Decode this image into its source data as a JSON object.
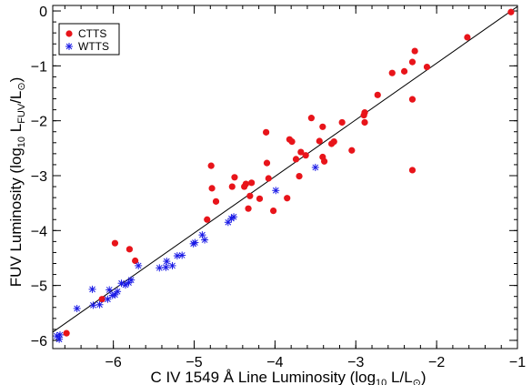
{
  "chart_data": {
    "type": "scatter",
    "title": "",
    "xlabel": "C IV 1549 Å Line Luminosity (log",
    "xlabel_sub": "10",
    "xlabel_tail": " L/L",
    "xlabel_sun_sub": "⊙",
    "xlabel_end": ")",
    "ylabel": "FUV Luminosity (log",
    "ylabel_sub": "10",
    "ylabel_mid": " L",
    "ylabel_sub2": "FUV",
    "ylabel_mid2": "/L",
    "ylabel_sun_sub": "⊙",
    "ylabel_end": ")",
    "xlim": [
      -6.75,
      -1.0
    ],
    "ylim": [
      -6.15,
      0.1
    ],
    "x_ticks": [
      -6,
      -5,
      -4,
      -3,
      -2,
      -1
    ],
    "y_ticks": [
      0,
      -1,
      -2,
      -3,
      -4,
      -5,
      -6
    ],
    "legend_position": "top-left",
    "fit_line": {
      "x": [
        -6.75,
        -1.0
      ],
      "y": [
        -5.85,
        0.08
      ]
    },
    "series": [
      {
        "name": "CTTS",
        "marker": "circle",
        "color": "#e8141a",
        "points": [
          [
            -1.08,
            -0.02
          ],
          [
            -1.62,
            -0.48
          ],
          [
            -2.12,
            -1.02
          ],
          [
            -2.27,
            -0.73
          ],
          [
            -2.3,
            -0.93
          ],
          [
            -2.4,
            -1.1
          ],
          [
            -2.55,
            -1.13
          ],
          [
            -2.3,
            -1.61
          ],
          [
            -2.3,
            -2.9
          ],
          [
            -2.73,
            -1.53
          ],
          [
            -2.89,
            -1.85
          ],
          [
            -2.9,
            -1.9
          ],
          [
            -2.89,
            -2.03
          ],
          [
            -3.05,
            -2.54
          ],
          [
            -3.17,
            -2.03
          ],
          [
            -3.27,
            -2.38
          ],
          [
            -3.3,
            -2.42
          ],
          [
            -3.41,
            -2.11
          ],
          [
            -3.41,
            -2.66
          ],
          [
            -3.39,
            -2.74
          ],
          [
            -3.45,
            -2.37
          ],
          [
            -3.55,
            -1.95
          ],
          [
            -3.62,
            -2.63
          ],
          [
            -3.68,
            -2.57
          ],
          [
            -3.7,
            -3.01
          ],
          [
            -3.74,
            -2.7
          ],
          [
            -3.79,
            -2.38
          ],
          [
            -3.82,
            -2.34
          ],
          [
            -3.85,
            -3.41
          ],
          [
            -4.02,
            -3.64
          ],
          [
            -4.08,
            -3.05
          ],
          [
            -4.1,
            -2.77
          ],
          [
            -4.11,
            -2.21
          ],
          [
            -4.19,
            -3.42
          ],
          [
            -4.29,
            -3.13
          ],
          [
            -4.31,
            -3.37
          ],
          [
            -4.33,
            -3.6
          ],
          [
            -4.36,
            -3.15
          ],
          [
            -4.38,
            -3.2
          ],
          [
            -4.5,
            -3.03
          ],
          [
            -4.53,
            -3.2
          ],
          [
            -4.73,
            -3.47
          ],
          [
            -4.78,
            -3.23
          ],
          [
            -4.79,
            -2.82
          ],
          [
            -4.84,
            -3.8
          ],
          [
            -5.73,
            -4.55
          ],
          [
            -5.8,
            -4.34
          ],
          [
            -5.98,
            -4.23
          ],
          [
            -6.14,
            -5.25
          ],
          [
            -6.58,
            -5.87
          ]
        ]
      },
      {
        "name": "WTTS",
        "marker": "asterisk",
        "color": "#1a1ae6",
        "points": [
          [
            -3.5,
            -2.85
          ],
          [
            -3.99,
            -3.27
          ],
          [
            -4.51,
            -3.75
          ],
          [
            -4.54,
            -3.78
          ],
          [
            -4.58,
            -3.85
          ],
          [
            -4.87,
            -4.17
          ],
          [
            -4.9,
            -4.08
          ],
          [
            -4.99,
            -4.22
          ],
          [
            -5.01,
            -4.24
          ],
          [
            -5.15,
            -4.45
          ],
          [
            -5.21,
            -4.46
          ],
          [
            -5.27,
            -4.64
          ],
          [
            -5.34,
            -4.56
          ],
          [
            -5.35,
            -4.67
          ],
          [
            -5.43,
            -4.68
          ],
          [
            -5.69,
            -4.64
          ],
          [
            -5.78,
            -4.9
          ],
          [
            -5.81,
            -4.95
          ],
          [
            -5.85,
            -4.99
          ],
          [
            -5.9,
            -4.96
          ],
          [
            -5.95,
            -5.11
          ],
          [
            -5.98,
            -5.17
          ],
          [
            -6.01,
            -5.18
          ],
          [
            -6.05,
            -5.08
          ],
          [
            -6.07,
            -5.25
          ],
          [
            -6.17,
            -5.35
          ],
          [
            -6.25,
            -5.36
          ],
          [
            -6.26,
            -5.07
          ],
          [
            -6.45,
            -5.42
          ],
          [
            -6.66,
            -5.9
          ],
          [
            -6.7,
            -5.92
          ],
          [
            -6.67,
            -5.98
          ]
        ]
      }
    ]
  }
}
